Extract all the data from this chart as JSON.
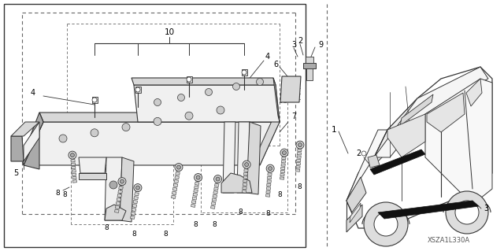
{
  "bg_color": "#ffffff",
  "line_color": "#333333",
  "dark_color": "#111111",
  "gray_light": "#f0f0f0",
  "gray_mid": "#d8d8d8",
  "gray_dark": "#aaaaaa",
  "dash_color": "#666666",
  "diagram_code": "XSZA1L330A",
  "fig_width": 6.4,
  "fig_height": 3.19,
  "dpi": 100
}
